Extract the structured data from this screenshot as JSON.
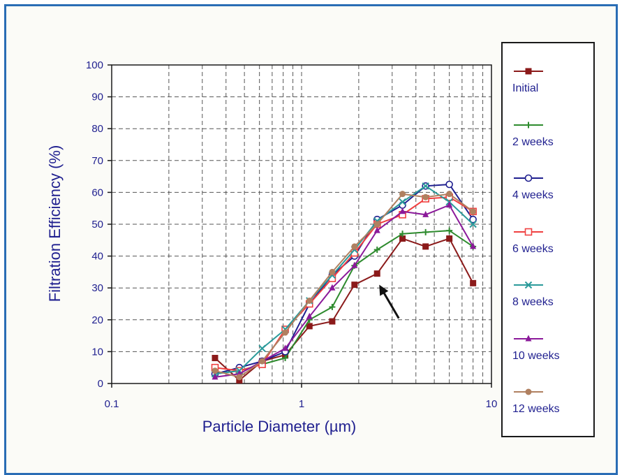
{
  "chart_data": {
    "type": "line",
    "xlabel": "Particle Diameter (µm)",
    "ylabel": "Filtration Efficiency (%)",
    "xscale": "log",
    "xlim": [
      0.1,
      10
    ],
    "ylim": [
      0,
      100
    ],
    "grid": true,
    "legend_position": "right",
    "x_ticks": [
      {
        "value": 0.1,
        "label": "0.1"
      },
      {
        "value": 1,
        "label": "1"
      },
      {
        "value": 10,
        "label": "10"
      }
    ],
    "y_ticks": [
      {
        "value": 0,
        "label": "0"
      },
      {
        "value": 10,
        "label": "10"
      },
      {
        "value": 20,
        "label": "20"
      },
      {
        "value": 30,
        "label": "30"
      },
      {
        "value": 40,
        "label": "40"
      },
      {
        "value": 50,
        "label": "50"
      },
      {
        "value": 60,
        "label": "60"
      },
      {
        "value": 70,
        "label": "70"
      },
      {
        "value": 80,
        "label": "80"
      },
      {
        "value": 90,
        "label": "90"
      },
      {
        "value": 100,
        "label": "100"
      }
    ],
    "x": [
      0.35,
      0.47,
      0.62,
      0.82,
      1.1,
      1.45,
      1.9,
      2.5,
      3.4,
      4.5,
      6.0,
      8.0
    ],
    "series": [
      {
        "name": "Initial",
        "color": "#8b1a1a",
        "marker": "square",
        "values": [
          8,
          1,
          7,
          9,
          18,
          19.5,
          31,
          34.5,
          45.5,
          43,
          45.5,
          31.5
        ]
      },
      {
        "name": "2 weeks",
        "color": "#2e8b2e",
        "marker": "plus",
        "values": [
          3,
          4,
          6,
          8,
          20,
          24,
          37,
          42,
          47,
          47.5,
          48,
          43
        ]
      },
      {
        "name": "4 weeks",
        "color": "#1f1f8f",
        "marker": "circle",
        "values": [
          3,
          5,
          7,
          10,
          25,
          34,
          40,
          51.5,
          56,
          62,
          62.5,
          51.5
        ]
      },
      {
        "name": "6 weeks",
        "color": "#f04040",
        "marker": "square-open",
        "values": [
          5,
          4,
          6,
          17,
          25,
          33,
          41,
          50,
          53,
          58,
          58.5,
          54
        ]
      },
      {
        "name": "8 weeks",
        "color": "#2a9a9a",
        "marker": "x",
        "values": [
          3,
          4,
          11,
          17,
          26,
          34,
          42,
          51,
          57,
          62,
          57,
          50
        ]
      },
      {
        "name": "10 weeks",
        "color": "#8b1a9a",
        "marker": "triangle",
        "values": [
          2,
          3,
          7,
          11,
          21,
          30,
          37,
          48,
          54,
          53,
          56,
          43
        ]
      },
      {
        "name": "12 weeks",
        "color": "#b08060",
        "marker": "circle-filled",
        "values": [
          4,
          2,
          7,
          16,
          26,
          35,
          43,
          50,
          59.5,
          58.5,
          59.5,
          54
        ]
      }
    ],
    "annotations": [
      {
        "type": "arrow",
        "color": "#111111",
        "points_to": {
          "x": 2.5,
          "y": 31
        }
      }
    ]
  }
}
